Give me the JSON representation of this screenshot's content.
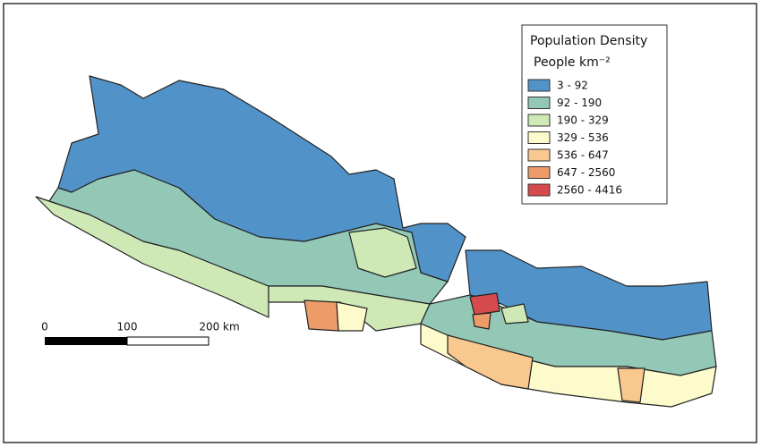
{
  "legend": {
    "title": "Population Density",
    "unit": "People km⁻²",
    "items": [
      {
        "label": "3 - 92",
        "color": "#5193c9"
      },
      {
        "label": "92 - 190",
        "color": "#93c8b6"
      },
      {
        "label": "190 - 329",
        "color": "#cfe9b6"
      },
      {
        "label": "329 - 536",
        "color": "#fdfbcb"
      },
      {
        "label": "536 - 647",
        "color": "#f8c88f"
      },
      {
        "label": "647 - 2560",
        "color": "#ee9b6a"
      },
      {
        "label": "2560 - 4416",
        "color": "#d64a4c"
      }
    ]
  },
  "scale_bar": {
    "labels": [
      "0",
      "100",
      "200 km"
    ]
  }
}
